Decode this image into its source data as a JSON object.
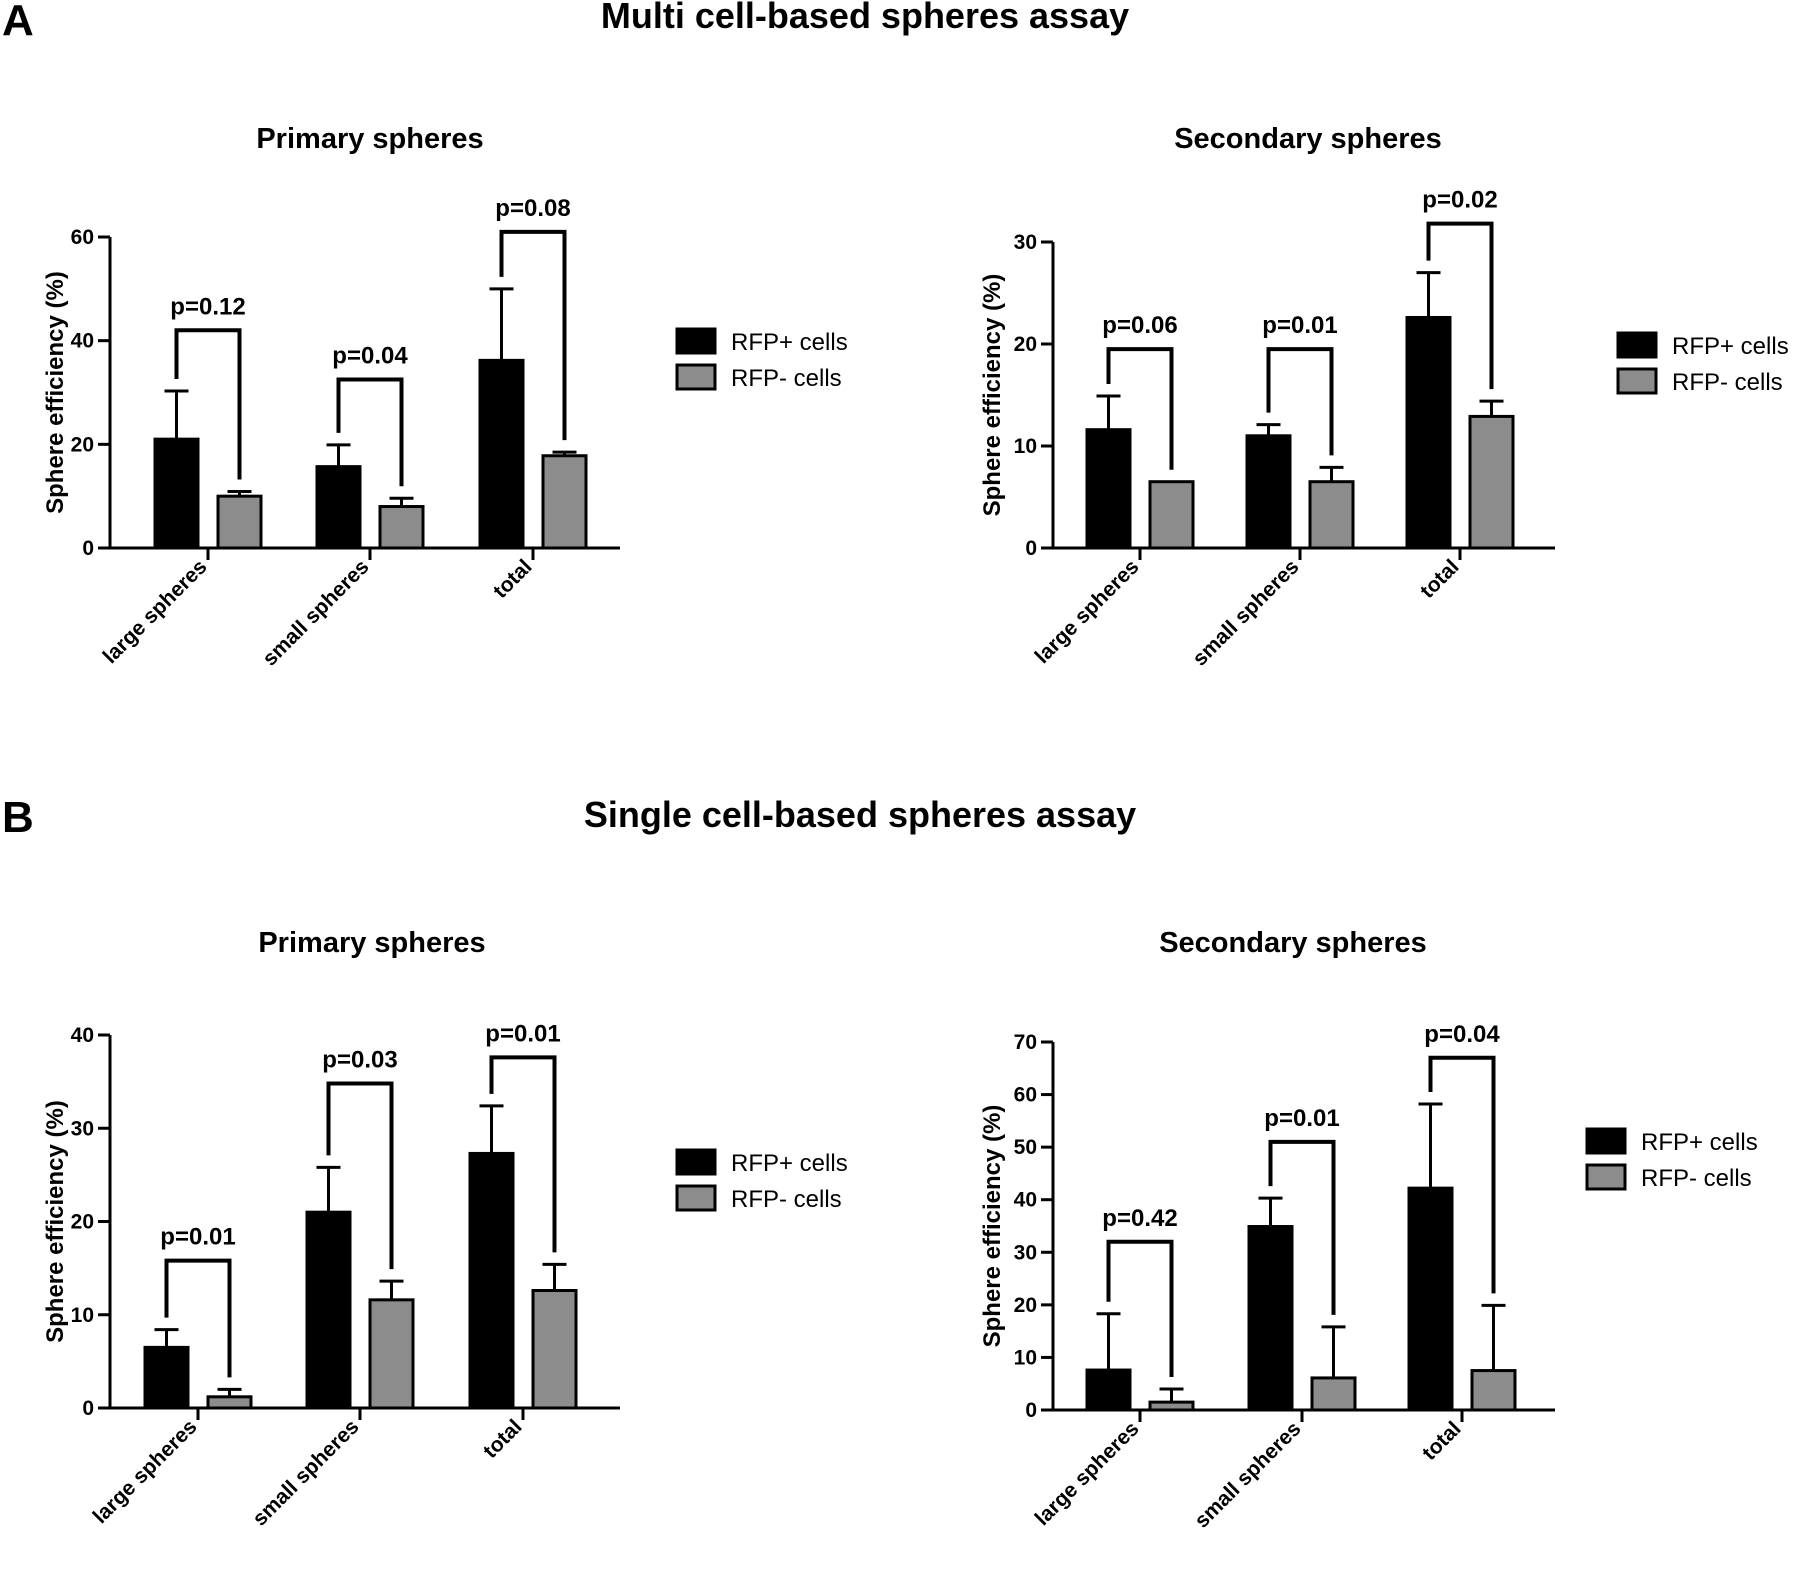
{
  "sections": [
    {
      "letter": "A",
      "title": "Multi cell-based spheres assay"
    },
    {
      "letter": "B",
      "title": "Single cell-based spheres assay"
    }
  ],
  "colors": {
    "rfp_pos": "#000000",
    "rfp_neg": "#8c8c8c",
    "axis": "#000000"
  },
  "legend": [
    "RFP+ cells",
    "RFP- cells"
  ],
  "chart_data": [
    {
      "id": "A-primary",
      "type": "bar",
      "title": "Primary spheres",
      "ylabel": "Sphere efficiency (%)",
      "ylim": [
        0,
        60
      ],
      "yticks": [
        0,
        20,
        40,
        60
      ],
      "categories": [
        "large spheres",
        "small spheres",
        "total"
      ],
      "series": [
        {
          "name": "RFP+ cells",
          "values": [
            21,
            15.7,
            36.2
          ],
          "errors": [
            9.3,
            4.2,
            13.8
          ]
        },
        {
          "name": "RFP- cells",
          "values": [
            10,
            8,
            17.8
          ],
          "errors": [
            0.9,
            1.6,
            0.7
          ]
        }
      ],
      "pvalues": [
        "p=0.12",
        "p=0.04",
        "p=0.08"
      ],
      "bracket_tops": [
        42,
        32.5,
        61
      ]
    },
    {
      "id": "A-secondary",
      "type": "bar",
      "title": "Secondary spheres",
      "ylabel": "Sphere efficiency (%)",
      "ylim": [
        0,
        30
      ],
      "yticks": [
        0,
        10,
        20,
        30
      ],
      "categories": [
        "large spheres",
        "small spheres",
        "total"
      ],
      "series": [
        {
          "name": "RFP+ cells",
          "values": [
            11.6,
            11,
            22.6
          ],
          "errors": [
            3.3,
            1.1,
            4.4
          ]
        },
        {
          "name": "RFP- cells",
          "values": [
            6.5,
            6.5,
            12.9
          ],
          "errors": [
            0,
            1.4,
            1.5
          ]
        }
      ],
      "pvalues": [
        "p=0.06",
        "p=0.01",
        "p=0.02"
      ],
      "bracket_tops": [
        19.5,
        19.5,
        31.8
      ]
    },
    {
      "id": "B-primary",
      "type": "bar",
      "title": "Primary spheres",
      "ylabel": "Sphere efficiency (%)",
      "ylim": [
        0,
        40
      ],
      "yticks": [
        0,
        10,
        20,
        30,
        40
      ],
      "categories": [
        "large spheres",
        "small spheres",
        "total"
      ],
      "series": [
        {
          "name": "RFP+ cells",
          "values": [
            6.5,
            21,
            27.3
          ],
          "errors": [
            1.9,
            4.8,
            5.1
          ]
        },
        {
          "name": "RFP- cells",
          "values": [
            1.2,
            11.6,
            12.6
          ],
          "errors": [
            0.8,
            2.0,
            2.8
          ]
        }
      ],
      "pvalues": [
        "p=0.01",
        "p=0.03",
        "p=0.01"
      ],
      "bracket_tops": [
        15.8,
        34.8,
        37.6
      ]
    },
    {
      "id": "B-secondary",
      "type": "bar",
      "title": "Secondary spheres",
      "ylabel": "Sphere efficiency (%)",
      "ylim": [
        0,
        70
      ],
      "yticks": [
        0,
        10,
        20,
        30,
        40,
        50,
        60,
        70
      ],
      "categories": [
        "large spheres",
        "small spheres",
        "total"
      ],
      "series": [
        {
          "name": "RFP+ cells",
          "values": [
            7.6,
            34.9,
            42.2
          ],
          "errors": [
            10.7,
            5.4,
            16.0
          ]
        },
        {
          "name": "RFP- cells",
          "values": [
            1.5,
            6.1,
            7.5
          ],
          "errors": [
            2.5,
            9.7,
            12.4
          ]
        }
      ],
      "pvalues": [
        "p=0.42",
        "p=0.01",
        "p=0.04"
      ],
      "bracket_tops": [
        32,
        51,
        67
      ]
    }
  ]
}
